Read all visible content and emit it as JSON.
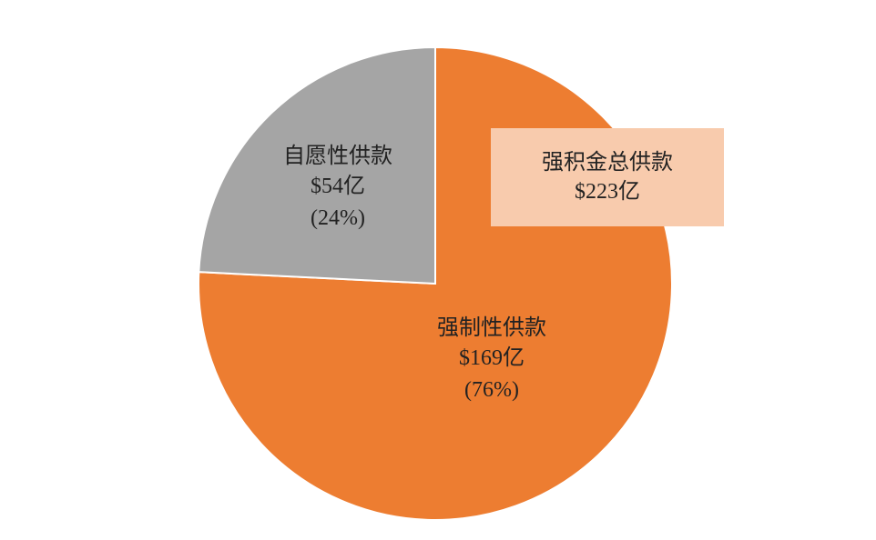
{
  "chart_data": {
    "type": "pie",
    "categories": [
      "强制性供款",
      "自愿性供款"
    ],
    "values": [
      169,
      54
    ],
    "value_labels": [
      "$169亿",
      "$54亿"
    ],
    "percent_labels": [
      "(76%)",
      "(24%)"
    ],
    "colors": [
      "#ED7D31",
      "#A5A5A5"
    ],
    "slice_border_color": "#FFFFFF",
    "start": "12 o'clock, clockwise",
    "total": {
      "label": "强积金总供款",
      "value_label": "$223亿",
      "box_color": "#F8CBAD"
    }
  }
}
